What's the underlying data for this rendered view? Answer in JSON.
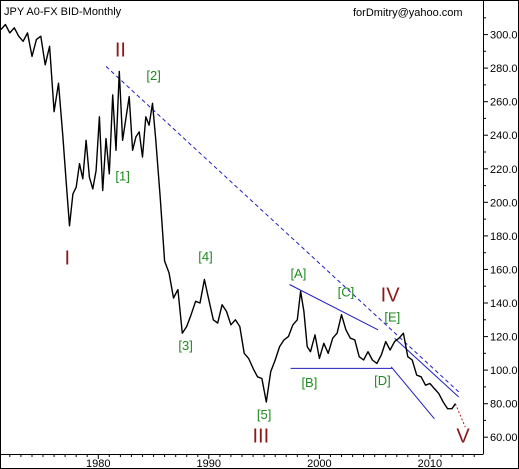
{
  "chart_data": {
    "type": "line",
    "title": "JPY A0-FX BID-Monthly",
    "watermark": "forDmitry@yahoo.com",
    "x_ticks": [
      "1980",
      "1990",
      "2000",
      "2010"
    ],
    "x_tick_values": [
      1980,
      1990,
      2000,
      2010
    ],
    "y_ticks": [
      "60.00",
      "80.00",
      "100.0",
      "120.0",
      "140.0",
      "160.0",
      "180.0",
      "200.0",
      "220.0",
      "240.0",
      "260.0",
      "280.0",
      "300.0"
    ],
    "y_tick_values": [
      60,
      80,
      100,
      120,
      140,
      160,
      180,
      200,
      220,
      240,
      260,
      280,
      300
    ],
    "xlim": [
      1971.2,
      2014.8
    ],
    "ylim": [
      50,
      320
    ],
    "grid": false,
    "legend": "none",
    "series": [
      {
        "x": [
          1971.2,
          1971.6,
          1972.0,
          1972.4,
          1972.8,
          1973.2,
          1973.6,
          1974.0,
          1974.4,
          1974.8,
          1975.2,
          1975.6,
          1976.0,
          1976.4,
          1976.8,
          1977.1,
          1977.4,
          1977.7,
          1978.0,
          1978.3,
          1978.6,
          1978.9,
          1979.2,
          1979.5,
          1979.8,
          1980.1,
          1980.4,
          1980.7,
          1981.0,
          1981.3,
          1981.6,
          1981.9,
          1982.2,
          1982.5,
          1982.8,
          1983.1,
          1983.4,
          1983.7,
          1984.0,
          1984.3,
          1984.6,
          1984.9,
          1985.2,
          1985.6,
          1986.0,
          1986.4,
          1986.8,
          1987.2,
          1987.6,
          1988.0,
          1988.4,
          1988.8,
          1989.2,
          1989.6,
          1990.0,
          1990.4,
          1990.8,
          1991.2,
          1991.6,
          1992.0,
          1992.4,
          1992.8,
          1993.2,
          1993.6,
          1994.0,
          1994.4,
          1994.8,
          1995.2,
          1995.6,
          1996.0,
          1996.4,
          1996.8,
          1997.2,
          1997.6,
          1998.0,
          1998.3,
          1998.6,
          1998.9,
          1999.2,
          1999.6,
          2000.0,
          2000.4,
          2000.8,
          2001.2,
          2001.6,
          2002.0,
          2002.4,
          2002.8,
          2003.2,
          2003.6,
          2004.0,
          2004.4,
          2004.8,
          2005.2,
          2005.6,
          2006.0,
          2006.4,
          2006.8,
          2007.2,
          2007.6,
          2008.0,
          2008.4,
          2008.8,
          2009.2,
          2009.6,
          2010.0,
          2010.4,
          2010.8,
          2011.2,
          2011.6,
          2012.0,
          2012.3
        ],
        "values": [
          303,
          306,
          301,
          304,
          299,
          296,
          301,
          287,
          297,
          299,
          282,
          293,
          254,
          271,
          239,
          212,
          186,
          205,
          209,
          223,
          214,
          237,
          215,
          208,
          219,
          251,
          207,
          238,
          217,
          264,
          231,
          278,
          237,
          250,
          263,
          231,
          239,
          242,
          227,
          251,
          246,
          259,
          237,
          203,
          165,
          158,
          143,
          148,
          122,
          126,
          133,
          141,
          140,
          154,
          142,
          130,
          128,
          139,
          135,
          127,
          130,
          126,
          110,
          107,
          101,
          96,
          95,
          81,
          99,
          106,
          114,
          118,
          120,
          127,
          130,
          147,
          135,
          114,
          111,
          121,
          107,
          116,
          110,
          119,
          122,
          133,
          124,
          119,
          118,
          108,
          106,
          111,
          106,
          104,
          109,
          117,
          112,
          117,
          119,
          122,
          108,
          106,
          97,
          96,
          91,
          92,
          89,
          86,
          81,
          77,
          77,
          80
        ]
      }
    ],
    "labels": [
      {
        "text": "I",
        "kind": "major",
        "x": 1977.2,
        "y": 163
      },
      {
        "text": "II",
        "kind": "major",
        "x": 1982.0,
        "y": 287
      },
      {
        "text": "III",
        "kind": "major",
        "x": 1994.7,
        "y": 57
      },
      {
        "text": "IV",
        "kind": "major",
        "x": 2006.4,
        "y": 141
      },
      {
        "text": "V",
        "kind": "major",
        "x": 2013.0,
        "y": 57
      },
      {
        "text": "[1]",
        "kind": "minor",
        "x": 1982.2,
        "y": 213
      },
      {
        "text": "[2]",
        "kind": "minor",
        "x": 1985.0,
        "y": 273
      },
      {
        "text": "[3]",
        "kind": "minor",
        "x": 1987.9,
        "y": 112
      },
      {
        "text": "[4]",
        "kind": "minor",
        "x": 1989.7,
        "y": 165
      },
      {
        "text": "[5]",
        "kind": "minor",
        "x": 1995.0,
        "y": 71
      },
      {
        "text": "[A]",
        "kind": "minor",
        "x": 1998.1,
        "y": 155
      },
      {
        "text": "[B]",
        "kind": "minor",
        "x": 1999.1,
        "y": 90
      },
      {
        "text": "[C]",
        "kind": "minor",
        "x": 2002.4,
        "y": 144
      },
      {
        "text": "[D]",
        "kind": "minor",
        "x": 2005.7,
        "y": 91
      },
      {
        "text": "[E]",
        "kind": "minor",
        "x": 2006.6,
        "y": 129
      }
    ],
    "trend_lines": [
      {
        "name": "dashed-resistance",
        "style": "dashed",
        "color": "#1f1fbf",
        "x1": 1980.7,
        "y1": 281,
        "x2": 2012.6,
        "y2": 87
      },
      {
        "name": "triangle-upper",
        "style": "solid",
        "color": "#1f1fbf",
        "x1": 1997.3,
        "y1": 151,
        "x2": 2005.3,
        "y2": 124
      },
      {
        "name": "triangle-lower",
        "style": "solid",
        "color": "#1f1fbf",
        "x1": 1997.4,
        "y1": 101,
        "x2": 2006.6,
        "y2": 101
      },
      {
        "name": "channel-upper",
        "style": "solid",
        "color": "#1f1fbf",
        "x1": 2006.8,
        "y1": 119,
        "x2": 2012.6,
        "y2": 84
      },
      {
        "name": "channel-lower",
        "style": "solid",
        "color": "#1f1fbf",
        "x1": 2006.5,
        "y1": 102,
        "x2": 2010.4,
        "y2": 71
      },
      {
        "name": "projection",
        "style": "dotted",
        "color": "#c01818",
        "x1": 2012.3,
        "y1": 80,
        "x2": 2013.2,
        "y2": 66
      }
    ],
    "colors": {
      "series": "#000000",
      "major_label": "#8b1a1a",
      "minor_label": "#1f8a1f",
      "trend": "#1f1fbf",
      "projection": "#c01818"
    }
  }
}
